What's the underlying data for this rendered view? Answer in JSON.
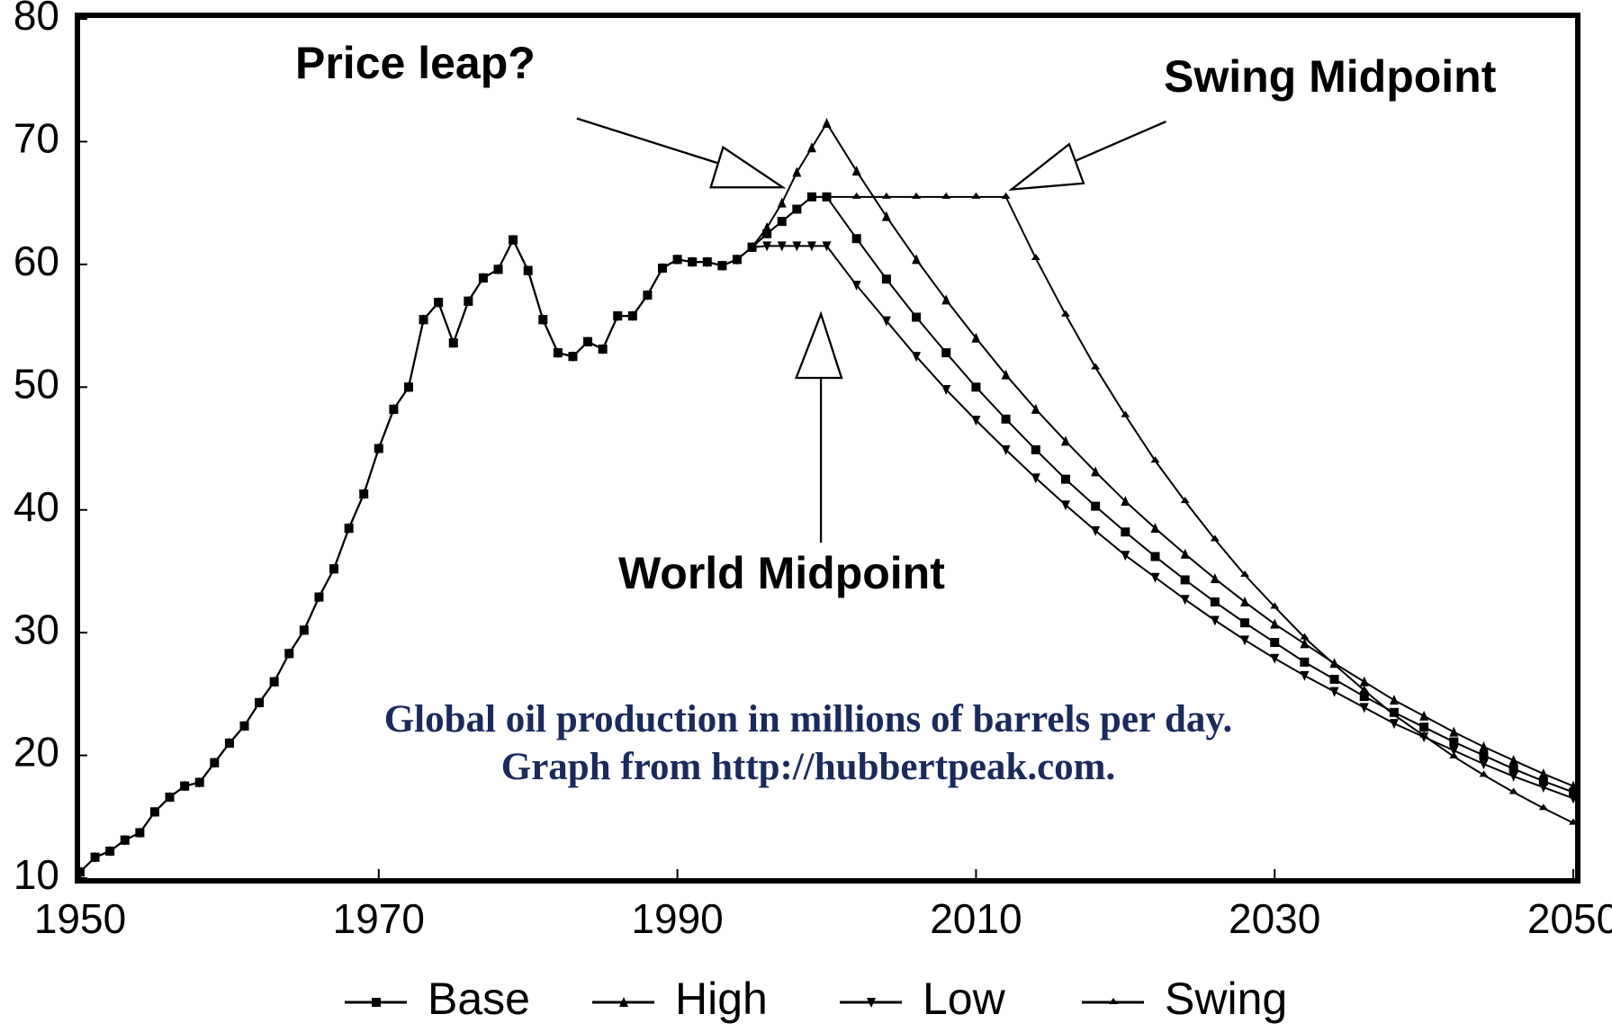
{
  "chart_data": {
    "type": "line",
    "annotations": [
      "Price leap?",
      "Swing Midpoint",
      "World Midpoint"
    ],
    "caption": [
      "Global oil production in millions of barrels per day.",
      "Graph from http://hubbertpeak.com."
    ],
    "x": [
      1950,
      1951,
      1952,
      1953,
      1954,
      1955,
      1956,
      1957,
      1958,
      1959,
      1960,
      1961,
      1962,
      1963,
      1964,
      1965,
      1966,
      1967,
      1968,
      1969,
      1970,
      1971,
      1972,
      1973,
      1974,
      1975,
      1976,
      1977,
      1978,
      1979,
      1980,
      1981,
      1982,
      1983,
      1984,
      1985,
      1986,
      1987,
      1988,
      1989,
      1990,
      1991,
      1992,
      1993,
      1994,
      1995,
      1996,
      1997,
      1998,
      1999,
      2000,
      2002,
      2004,
      2006,
      2008,
      2010,
      2012,
      2014,
      2016,
      2018,
      2020,
      2022,
      2024,
      2026,
      2028,
      2030,
      2032,
      2034,
      2036,
      2038,
      2040,
      2042,
      2044,
      2046,
      2048,
      2050
    ],
    "series": [
      {
        "name": "Base",
        "color": "#000000",
        "marker": "square",
        "values": [
          10.5,
          11.7,
          12.2,
          13.1,
          13.7,
          15.4,
          16.6,
          17.5,
          17.8,
          19.4,
          21.0,
          22.4,
          24.3,
          26.0,
          28.3,
          30.2,
          32.9,
          35.2,
          38.5,
          41.3,
          45.0,
          48.2,
          50.0,
          55.5,
          56.9,
          53.6,
          57.0,
          58.9,
          59.6,
          62.0,
          59.5,
          55.5,
          52.8,
          52.5,
          53.7,
          53.1,
          55.8,
          55.8,
          57.5,
          59.7,
          60.4,
          60.2,
          60.2,
          59.9,
          60.4,
          61.4,
          62.5,
          63.5,
          64.5,
          65.5,
          65.5,
          62.1,
          58.8,
          55.7,
          52.8,
          50.0,
          47.4,
          44.9,
          42.5,
          40.3,
          38.2,
          36.2,
          34.3,
          32.5,
          30.8,
          29.2,
          27.6,
          26.2,
          24.8,
          23.5,
          22.3,
          21.1,
          20.0,
          18.9,
          17.9,
          17.0
        ]
      },
      {
        "name": "High",
        "color": "#000000",
        "marker": "triangle-up",
        "values": [
          10.5,
          11.7,
          12.2,
          13.1,
          13.7,
          15.4,
          16.6,
          17.5,
          17.8,
          19.4,
          21.0,
          22.4,
          24.3,
          26.0,
          28.3,
          30.2,
          32.9,
          35.2,
          38.5,
          41.3,
          45.0,
          48.2,
          50.0,
          55.5,
          56.9,
          53.6,
          57.0,
          58.9,
          59.6,
          62.0,
          59.5,
          55.5,
          52.8,
          52.5,
          53.7,
          53.1,
          55.8,
          55.8,
          57.5,
          59.7,
          60.4,
          60.2,
          60.2,
          59.9,
          60.4,
          61.4,
          63.0,
          65.0,
          67.5,
          69.5,
          71.5,
          67.6,
          63.9,
          60.4,
          57.1,
          54.0,
          51.0,
          48.2,
          45.6,
          43.1,
          40.7,
          38.5,
          36.4,
          34.4,
          32.5,
          30.7,
          29.1,
          27.5,
          26.0,
          24.5,
          23.2,
          21.9,
          20.7,
          19.6,
          18.5,
          17.5
        ]
      },
      {
        "name": "Low",
        "color": "#000000",
        "marker": "triangle-down",
        "values": [
          10.5,
          11.7,
          12.2,
          13.1,
          13.7,
          15.4,
          16.6,
          17.5,
          17.8,
          19.4,
          21.0,
          22.4,
          24.3,
          26.0,
          28.3,
          30.2,
          32.9,
          35.2,
          38.5,
          41.3,
          45.0,
          48.2,
          50.0,
          55.5,
          56.9,
          53.6,
          57.0,
          58.9,
          59.6,
          62.0,
          59.5,
          55.5,
          52.8,
          52.5,
          53.7,
          53.1,
          55.8,
          55.8,
          57.5,
          59.7,
          60.4,
          60.2,
          60.2,
          59.9,
          60.4,
          61.4,
          61.5,
          61.5,
          61.5,
          61.5,
          61.5,
          58.3,
          55.4,
          52.5,
          49.8,
          47.3,
          44.9,
          42.6,
          40.4,
          38.3,
          36.3,
          34.5,
          32.7,
          31.0,
          29.4,
          27.9,
          26.5,
          25.2,
          23.9,
          22.6,
          21.5,
          20.4,
          19.3,
          18.3,
          17.4,
          16.5
        ]
      },
      {
        "name": "Swing",
        "color": "#000000",
        "marker": "dash",
        "values": [
          10.5,
          11.7,
          12.2,
          13.1,
          13.7,
          15.4,
          16.6,
          17.5,
          17.8,
          19.4,
          21.0,
          22.4,
          24.3,
          26.0,
          28.3,
          30.2,
          32.9,
          35.2,
          38.5,
          41.3,
          45.0,
          48.2,
          50.0,
          55.5,
          56.9,
          53.6,
          57.0,
          58.9,
          59.6,
          62.0,
          59.5,
          55.5,
          52.8,
          52.5,
          53.7,
          53.1,
          55.8,
          55.8,
          57.5,
          59.7,
          60.4,
          60.2,
          60.2,
          59.9,
          60.4,
          61.4,
          62.5,
          63.5,
          64.5,
          65.5,
          65.5,
          65.5,
          65.5,
          65.5,
          65.5,
          65.5,
          65.5,
          60.5,
          55.9,
          51.6,
          47.7,
          44.0,
          40.7,
          37.6,
          34.7,
          32.1,
          29.6,
          27.4,
          25.3,
          23.3,
          21.6,
          19.9,
          18.4,
          17.0,
          15.7,
          14.5
        ]
      }
    ],
    "xlim": [
      1950,
      2050
    ],
    "xticks": [
      1950,
      1970,
      1990,
      2010,
      2030,
      2050
    ],
    "ylim": [
      10,
      80
    ],
    "yticks": [
      10,
      20,
      30,
      40,
      50,
      60,
      70,
      80
    ],
    "grid": false,
    "legend": "bottom"
  }
}
